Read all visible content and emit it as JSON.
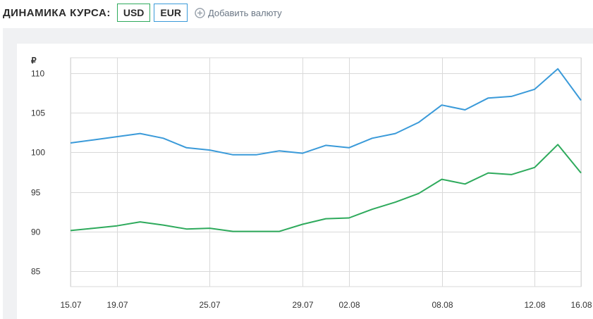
{
  "header": {
    "title": "ДИНАМИКА КУРСА:",
    "currencies": [
      {
        "label": "USD",
        "color": "#2eaa5c"
      },
      {
        "label": "EUR",
        "color": "#3a9ad9"
      }
    ],
    "add_label": "Добавить валюту"
  },
  "chart_data": {
    "type": "line",
    "ylabel": "₽",
    "ylim": [
      83,
      112
    ],
    "yticks": [
      85,
      90,
      95,
      100,
      105,
      110
    ],
    "xlim": [
      0,
      22
    ],
    "xticks": [
      {
        "i": 0,
        "label": "15.07"
      },
      {
        "i": 2,
        "label": "19.07"
      },
      {
        "i": 6,
        "label": "25.07"
      },
      {
        "i": 10,
        "label": "29.07"
      },
      {
        "i": 12,
        "label": "02.08"
      },
      {
        "i": 16,
        "label": "08.08"
      },
      {
        "i": 20,
        "label": "12.08"
      },
      {
        "i": 22,
        "label": "16.08"
      }
    ],
    "grid": true,
    "series": [
      {
        "name": "EUR",
        "color": "#3a9ad9",
        "values": [
          101.2,
          101.6,
          102.0,
          102.4,
          101.8,
          100.6,
          100.3,
          99.7,
          99.7,
          100.2,
          99.9,
          100.9,
          100.6,
          101.8,
          102.4,
          103.8,
          106.0,
          105.4,
          106.9,
          107.1,
          108.0,
          110.6,
          106.6
        ]
      },
      {
        "name": "USD",
        "color": "#2eaa5c",
        "values": [
          90.1,
          90.4,
          90.7,
          91.2,
          90.8,
          90.3,
          90.4,
          90.0,
          90.0,
          90.0,
          90.9,
          91.6,
          91.7,
          92.8,
          93.7,
          94.8,
          96.6,
          96.0,
          97.4,
          97.2,
          98.1,
          101.0,
          97.4
        ]
      }
    ]
  }
}
